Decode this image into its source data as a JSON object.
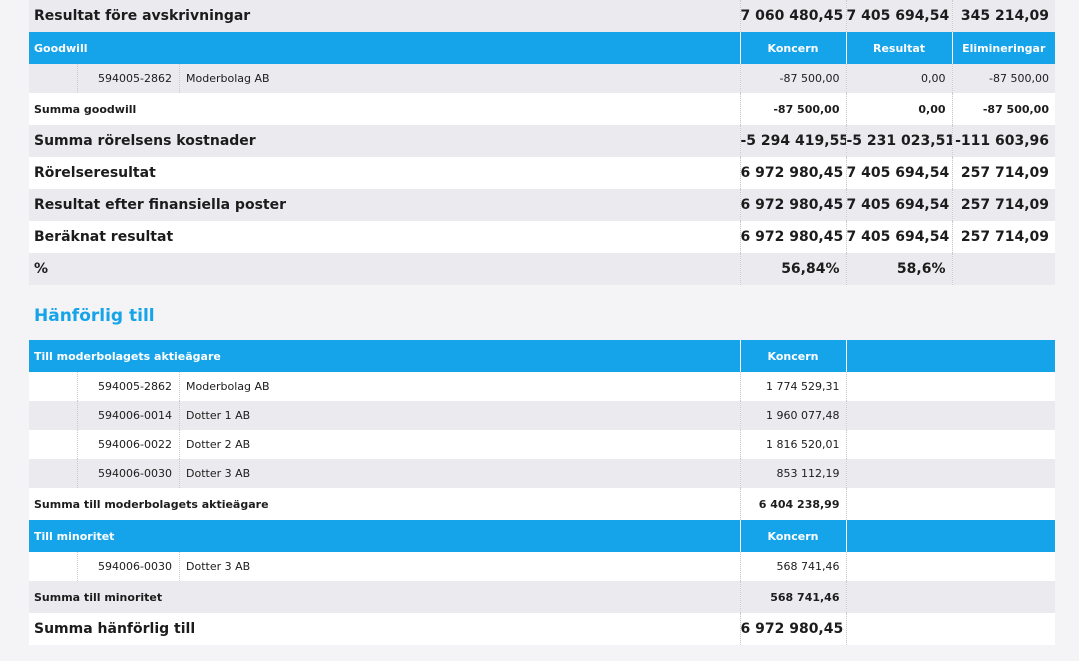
{
  "top": {
    "result_before_depr": {
      "label": "Resultat före avskrivningar",
      "v1": "7 060 480,45",
      "v2": "7 405 694,54",
      "v3": "345 214,09"
    },
    "goodwill_header": {
      "label": "Goodwill",
      "c1": "Koncern",
      "c2": "Resultat",
      "c3": "Elimineringar"
    },
    "goodwill_row": {
      "code": "594005-2862",
      "name": "Moderbolag AB",
      "v1": "-87 500,00",
      "v2": "0,00",
      "v3": "-87 500,00"
    },
    "sum_goodwill": {
      "label": "Summa goodwill",
      "v1": "-87 500,00",
      "v2": "0,00",
      "v3": "-87 500,00"
    },
    "sum_costs": {
      "label": "Summa rörelsens kostnader",
      "v1": "-5 294 419,55",
      "v2": "-5 231 023,51",
      "v3": "-111 603,96"
    },
    "operating_result": {
      "label": "Rörelseresultat",
      "v1": "6 972 980,45",
      "v2": "7 405 694,54",
      "v3": "257 714,09"
    },
    "after_financial": {
      "label": "Resultat efter finansiella poster",
      "v1": "6 972 980,45",
      "v2": "7 405 694,54",
      "v3": "257 714,09"
    },
    "calculated": {
      "label": "Beräknat resultat",
      "v1": "6 972 980,45",
      "v2": "7 405 694,54",
      "v3": "257 714,09"
    },
    "percent": {
      "label": "%",
      "v1": "56,84%",
      "v2": "58,6%",
      "v3": ""
    }
  },
  "attributable": {
    "title": "Hänförlig till",
    "parent_header": {
      "label": "Till moderbolagets aktieägare",
      "c1": "Koncern"
    },
    "parent_rows": [
      {
        "code": "594005-2862",
        "name": "Moderbolag AB",
        "value": "1 774 529,31"
      },
      {
        "code": "594006-0014",
        "name": "Dotter 1 AB",
        "value": "1 960 077,48"
      },
      {
        "code": "594006-0022",
        "name": "Dotter 2 AB",
        "value": "1 816 520,01"
      },
      {
        "code": "594006-0030",
        "name": "Dotter 3 AB",
        "value": "853 112,19"
      }
    ],
    "sum_parent": {
      "label": "Summa till moderbolagets aktieägare",
      "value": "6 404 238,99"
    },
    "minority_header": {
      "label": "Till minoritet",
      "c1": "Koncern"
    },
    "minority_rows": [
      {
        "code": "594006-0030",
        "name": "Dotter 3 AB",
        "value": "568 741,46"
      }
    ],
    "sum_minority": {
      "label": "Summa till minoritet",
      "value": "568 741,46"
    },
    "sum_total": {
      "label": "Summa hänförlig till",
      "value": "6 972 980,45"
    }
  }
}
